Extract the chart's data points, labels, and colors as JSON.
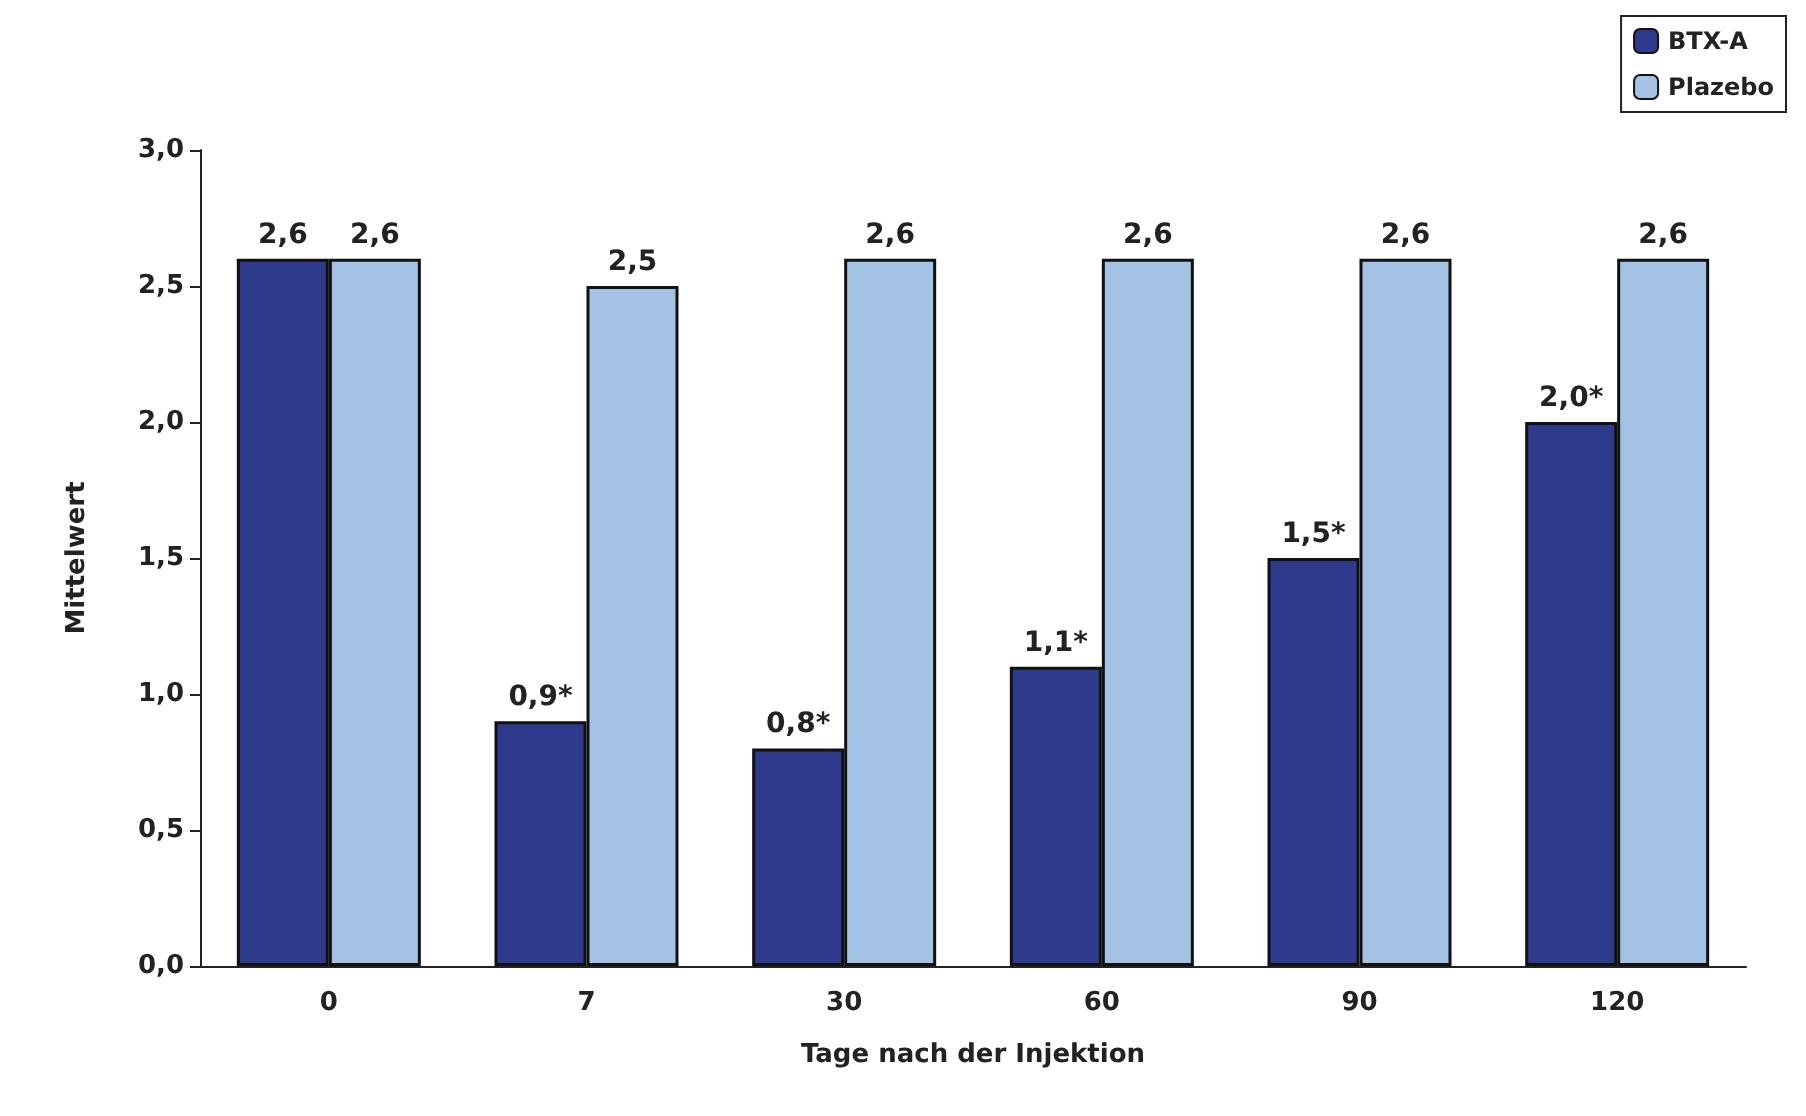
{
  "chart_data": {
    "type": "bar",
    "xlabel": "Tage nach der Injektion",
    "ylabel": "Mittelwert",
    "categories": [
      "0",
      "7",
      "30",
      "60",
      "90",
      "120"
    ],
    "series": [
      {
        "name": "BTX-A",
        "color": "#2e3a8c",
        "values": [
          2.6,
          0.9,
          0.8,
          1.1,
          1.5,
          2.0
        ],
        "value_labels": [
          "2,6",
          "0,9*",
          "0,8*",
          "1,1*",
          "1,5*",
          "2,0*"
        ]
      },
      {
        "name": "Plazebo",
        "color": "#a4c2e4",
        "values": [
          2.6,
          2.5,
          2.6,
          2.6,
          2.6,
          2.6
        ],
        "value_labels": [
          "2,6",
          "2,5",
          "2,6",
          "2,6",
          "2,6",
          "2,6"
        ]
      }
    ],
    "ylim": [
      0,
      3
    ],
    "yticks": [
      {
        "value": 0,
        "label": "0,0"
      },
      {
        "value": 0.5,
        "label": "0,5"
      },
      {
        "value": 1,
        "label": "1,0"
      },
      {
        "value": 1.5,
        "label": "1,5"
      },
      {
        "value": 2,
        "label": "2,0"
      },
      {
        "value": 2.5,
        "label": "2,5"
      },
      {
        "value": 3,
        "label": "3,0"
      }
    ],
    "grid": false,
    "legend": "top right"
  }
}
